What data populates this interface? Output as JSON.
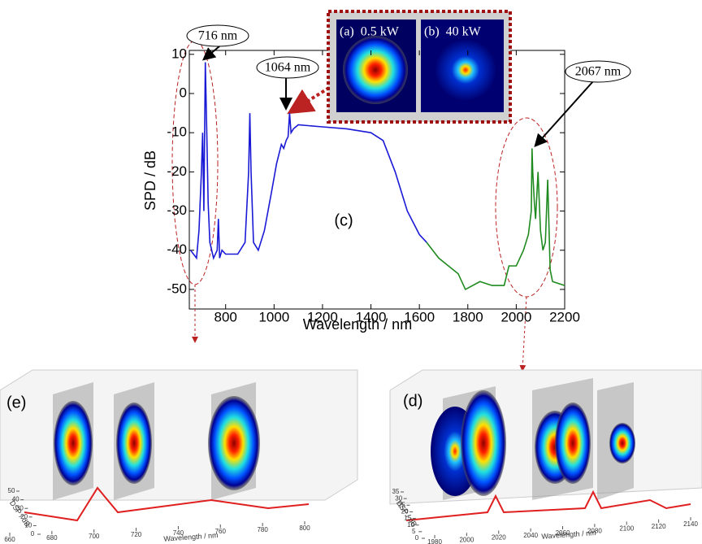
{
  "chart_data": [
    {
      "type": "line",
      "xlabel": "Wavelength / nm",
      "ylabel": "SPD / dB",
      "xlim": [
        650,
        2200
      ],
      "ylim": [
        -55,
        11
      ],
      "xticks": [
        800,
        1000,
        1200,
        1400,
        1600,
        1800,
        2000,
        2200
      ],
      "yticks": [
        10,
        0,
        -10,
        -20,
        -30,
        -40,
        -50
      ],
      "series": [
        {
          "color": "#1a1ad6",
          "x": [
            655,
            680,
            690,
            700,
            705,
            710,
            716,
            722,
            728,
            735,
            750,
            765,
            770,
            775,
            785,
            800,
            850,
            880,
            895,
            900,
            905,
            915,
            935,
            960,
            990,
            1010,
            1030,
            1040,
            1050,
            1058,
            1064,
            1070,
            1080,
            1100,
            1200,
            1300,
            1400,
            1450,
            1500,
            1550,
            1600,
            1630
          ],
          "values": [
            -40,
            -42,
            -35,
            -20,
            -10,
            -30,
            8,
            -10,
            -28,
            -38,
            -42,
            -40,
            -32,
            -42,
            -40,
            -41,
            -41,
            -38,
            -20,
            -5,
            -20,
            -38,
            -40,
            -35,
            -25,
            -18,
            -13,
            -14,
            -12,
            -11,
            -5,
            -10,
            -9,
            -8,
            -8.5,
            -9,
            -10,
            -12,
            -20,
            -30,
            -36,
            -38
          ]
        },
        {
          "color": "#1f8a1f",
          "x": [
            1630,
            1680,
            1720,
            1760,
            1790,
            1850,
            1900,
            1950,
            1970,
            2000,
            2030,
            2050,
            2062,
            2065,
            2068,
            2075,
            2080,
            2090,
            2100,
            2110,
            2120,
            2130,
            2140,
            2150,
            2200
          ],
          "values": [
            -38,
            -42,
            -44,
            -46,
            -50,
            -48,
            -49,
            -49,
            -44,
            -44,
            -40,
            -36,
            -30,
            -14,
            -20,
            -28,
            -32,
            -20,
            -35,
            -40,
            -38,
            -22,
            -45,
            -48,
            -49
          ]
        }
      ],
      "annotations": [
        "716 nm",
        "1064 nm",
        "2067 nm",
        "(c)"
      ],
      "inset_labels": [
        "(a)  0.5 kW",
        "(b)  40 kW"
      ]
    },
    {
      "type": "waterfall3d",
      "label": "(e)",
      "xlabel": "Wavelength / nm",
      "ylabel": "DSP / dB",
      "xlim": [
        660,
        800
      ],
      "ylim": [
        0,
        50
      ],
      "xticks": [
        660,
        680,
        700,
        720,
        740,
        760,
        780,
        800
      ],
      "yticks": [
        0,
        10,
        20,
        30,
        40,
        50
      ]
    },
    {
      "type": "waterfall3d",
      "label": "(d)",
      "xlabel": "Wavelength / nm",
      "ylabel": "DSP / dB",
      "xlim": [
        1980,
        2140
      ],
      "ylim": [
        0,
        35
      ],
      "xticks": [
        1980,
        2000,
        2020,
        2040,
        2060,
        2080,
        2100,
        2120,
        2140
      ],
      "yticks": [
        0,
        5,
        10,
        15,
        20,
        25,
        30,
        35
      ]
    }
  ]
}
